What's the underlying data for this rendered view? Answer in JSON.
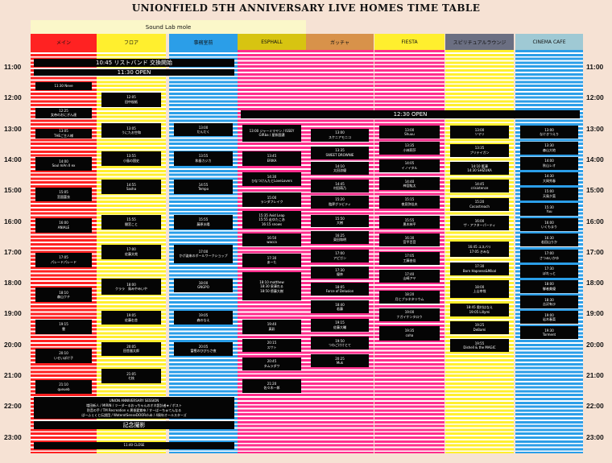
{
  "title": "UNIONFIELD 5TH ANNIVERSARY LIVE HOMES TIME TABLE",
  "group_label": "Sound Lab mole",
  "times": [
    "11:00",
    "12:00",
    "13:00",
    "14:00",
    "15:00",
    "16:00",
    "17:00",
    "18:00",
    "19:00",
    "20:00",
    "21:00",
    "22:00",
    "23:00"
  ],
  "colors": {
    "red": "#ff2222",
    "yellow": "#ffef2e",
    "blue": "#2b9ee8",
    "pink": "#ff2d8c",
    "dark": "#050505"
  },
  "stages": [
    {
      "id": "main",
      "name": "メイン",
      "header_bg": "#ff2222",
      "stripe": "#ff2222",
      "events": [
        {
          "start": "11:30",
          "end": "11:46",
          "text": "11:30 Neve"
        },
        {
          "start": "12:20",
          "end": "12:40",
          "text": "12:25\n女帝のおにぎん達"
        },
        {
          "start": "13:00",
          "end": "13:20",
          "text": "13:05\nTHEご主人様"
        },
        {
          "start": "13:55",
          "end": "14:22",
          "text": "14:00\nSoul mAn II ex"
        },
        {
          "start": "14:55",
          "end": "15:22",
          "text": "15:05\n宮園富衣"
        },
        {
          "start": "15:55",
          "end": "16:22",
          "text": "16:00\nANIALE"
        },
        {
          "start": "17:02",
          "end": "17:30",
          "text": "17:05\nパレードパレード"
        },
        {
          "start": "18:10",
          "end": "18:37",
          "text": "18:10\n森山クチ"
        },
        {
          "start": "19:12",
          "end": "19:40",
          "text": "19:15\n雲"
        },
        {
          "start": "20:08",
          "end": "20:36",
          "text": "20:10\nいせいぽけ子"
        },
        {
          "start": "21:10",
          "end": "21:36",
          "text": "21:10\nqueueb"
        }
      ]
    },
    {
      "id": "floor",
      "name": "フロア",
      "header_bg": "#ffef2e",
      "stripe": "#ffef2e",
      "events": [
        {
          "start": "11:50",
          "end": "12:18",
          "text": "12:05\n田中桜紙"
        },
        {
          "start": "12:50",
          "end": "13:18",
          "text": "13:05\nうにたお空和"
        },
        {
          "start": "13:45",
          "end": "14:12",
          "text": "13:55\n小島の国史"
        },
        {
          "start": "14:40",
          "end": "15:08",
          "text": "14:55\nSasha"
        },
        {
          "start": "15:48",
          "end": "16:16",
          "text": "15:55\n間宮こと"
        },
        {
          "start": "16:46",
          "end": "17:14",
          "text": "17:00\n佐藤文哉"
        },
        {
          "start": "17:52",
          "end": "18:24",
          "text": "18:00\nクララ　鳥みやみいや"
        },
        {
          "start": "18:55",
          "end": "19:22",
          "text": "19:05\n佐藤右舎"
        },
        {
          "start": "19:55",
          "end": "20:22",
          "text": "20:05\n田舎嵐太郎"
        },
        {
          "start": "20:48",
          "end": "21:16",
          "text": "21:05\n七枝"
        }
      ]
    },
    {
      "id": "room",
      "name": "事務室前",
      "header_bg": "#2b9ee8",
      "stripe": "#2b9ee8",
      "events": [
        {
          "start": "12:50",
          "end": "13:15",
          "text": "13:00\nだんだく"
        },
        {
          "start": "13:45",
          "end": "14:12",
          "text": "13:55\n和島カジカ"
        },
        {
          "start": "14:40",
          "end": "15:08",
          "text": "14:55\nTempo"
        },
        {
          "start": "15:48",
          "end": "16:16",
          "text": "15:55\n藤原水陽"
        },
        {
          "start": "16:46",
          "end": "17:22",
          "text": "17:00\nかげ姿来のボールワークショップ"
        },
        {
          "start": "17:52",
          "end": "18:18",
          "text": "18:00\nGNGPO"
        },
        {
          "start": "18:55",
          "end": "19:22",
          "text": "19:05\n森のなえ"
        },
        {
          "start": "19:55",
          "end": "20:22",
          "text": "20:05\n富樫のひびらさ夜"
        }
      ]
    },
    {
      "id": "esphall",
      "name": "ESPHALL",
      "header_bg": "#d7c411",
      "stripe": "#ff2d8c",
      "events": [
        {
          "start": "12:53",
          "end": "13:25",
          "text": "13:00 ジャーミマヤン / ISSEY\nGIRba / 星和国濃"
        },
        {
          "start": "13:45",
          "end": "14:12",
          "text": "13:45\nERIKA"
        },
        {
          "start": "14:25",
          "end": "14:52",
          "text": "14:30\nひなつけんたとLoveLovers"
        },
        {
          "start": "15:05",
          "end": "15:32",
          "text": "15:00\nランダフレイク"
        },
        {
          "start": "15:40",
          "end": "16:15",
          "text": "15:35 Avid Leap\n15:55 走ゆたこあ\n16:15 snows"
        },
        {
          "start": "16:25",
          "end": "16:50",
          "text": "16:50\nwacca"
        },
        {
          "start": "17:03",
          "end": "17:30",
          "text": "17:30\nあーた"
        },
        {
          "start": "17:40",
          "end": "18:35",
          "text": "18:10 matthew\n18:30 泉澤れる\n18:50 傍藤大樹"
        },
        {
          "start": "19:12",
          "end": "19:40",
          "text": "19:40\n真彩"
        },
        {
          "start": "19:50",
          "end": "20:14",
          "text": "20:15\nスサト"
        },
        {
          "start": "20:25",
          "end": "20:50",
          "text": "20:45\nタムラダワ"
        },
        {
          "start": "21:08",
          "end": "21:34",
          "text": "21:20\n佐々木一郎"
        }
      ]
    },
    {
      "id": "gacha",
      "name": "ガッチャ",
      "header_bg": "#d8924a",
      "stripe": "#ff2d8c",
      "events": [
        {
          "start": "13:00",
          "end": "13:25",
          "text": "13:00\nスケニアモニコ"
        },
        {
          "start": "13:35",
          "end": "14:00",
          "text": "13:35\nSWEET DROWNIE"
        },
        {
          "start": "14:05",
          "end": "14:30",
          "text": "14:10\n太田涼優"
        },
        {
          "start": "14:40",
          "end": "15:05",
          "text": "14:45\n村田萌乃"
        },
        {
          "start": "15:10",
          "end": "15:36",
          "text": "15:20\n臨界グラビティ"
        },
        {
          "start": "15:48",
          "end": "16:12",
          "text": "15:50\n大樹"
        },
        {
          "start": "16:20",
          "end": "16:45",
          "text": "16:25\n東田和明"
        },
        {
          "start": "16:55",
          "end": "17:20",
          "text": "17:00\nアピガン"
        },
        {
          "start": "17:28",
          "end": "17:52",
          "text": "17:30\n優奈"
        },
        {
          "start": "18:00",
          "end": "18:25",
          "text": "18:05\nForce of Delusion"
        },
        {
          "start": "18:35",
          "end": "19:00",
          "text": "18:40\n若藤"
        },
        {
          "start": "19:10",
          "end": "19:35",
          "text": "19:15\n佐藤大輔"
        },
        {
          "start": "19:45",
          "end": "20:10",
          "text": "19:50\nつわごけけとて"
        },
        {
          "start": "20:20",
          "end": "20:45",
          "text": "20:25\nMuk"
        }
      ]
    },
    {
      "id": "fiesta",
      "name": "FIESTA",
      "header_bg": "#ffef2e",
      "stripe": "#ff2d8c",
      "events": [
        {
          "start": "12:55",
          "end": "13:20",
          "text": "13:00\nShuuu"
        },
        {
          "start": "13:25",
          "end": "13:50",
          "text": "13:35\n小林莉莎"
        },
        {
          "start": "14:00",
          "end": "14:25",
          "text": "14:05\nイノイタル"
        },
        {
          "start": "14:35",
          "end": "15:00",
          "text": "14:40\n柿宮紘太"
        },
        {
          "start": "15:10",
          "end": "15:36",
          "text": "15:15\n夜見弥佳夫"
        },
        {
          "start": "15:50",
          "end": "16:15",
          "text": "15:55\n黒木林平"
        },
        {
          "start": "16:25",
          "end": "16:50",
          "text": "16:30\n宮平百音"
        },
        {
          "start": "17:00",
          "end": "17:25",
          "text": "17:05\n工藤由佳"
        },
        {
          "start": "17:35",
          "end": "18:00",
          "text": "17:40\n山崎アヤ"
        },
        {
          "start": "18:15",
          "end": "18:40",
          "text": "18:20\n月とプラネタリウム"
        },
        {
          "start": "18:50",
          "end": "19:15",
          "text": "19:00\nナガイケンタロウ"
        },
        {
          "start": "19:25",
          "end": "19:52",
          "text": "19:35\ncoha"
        }
      ]
    },
    {
      "id": "spiritual",
      "name": "スピリチュアルラウンジ",
      "header_bg": "#6b6f82",
      "stripe": "#ffef2e",
      "events": [
        {
          "start": "12:55",
          "end": "13:20",
          "text": "13:00\nソマリ"
        },
        {
          "start": "13:30",
          "end": "13:55",
          "text": "13:35\nプリテイガン"
        },
        {
          "start": "14:05",
          "end": "14:30",
          "text": "14:10 藍澤\n14:30 SHIZUKA"
        },
        {
          "start": "14:40",
          "end": "15:05",
          "text": "14:45\ncrisixtence"
        },
        {
          "start": "15:15",
          "end": "15:40",
          "text": "15:20\nCocostreach"
        },
        {
          "start": "15:50",
          "end": "16:18",
          "text": "16:00\nザ・アフターパーティ"
        },
        {
          "start": "16:40",
          "end": "17:10",
          "text": "16:45 ユスバリ\n17:05 きみな"
        },
        {
          "start": "17:20",
          "end": "17:45",
          "text": "17:30\nBorn Hapness&Mikal"
        },
        {
          "start": "17:55",
          "end": "18:30",
          "text": "18:00\n上山幸哉"
        },
        {
          "start": "18:40",
          "end": "19:05",
          "text": "18:45 奥村はなえ\n19:05 Lillymi"
        },
        {
          "start": "19:15",
          "end": "19:40",
          "text": "19:25\nDeBami"
        },
        {
          "start": "19:50",
          "end": "20:15",
          "text": "19:55\nDishell & the MAGIC"
        }
      ]
    },
    {
      "id": "cinema",
      "name": "CINEMA CAFE",
      "header_bg": "#9fc9d4",
      "stripe": "#2b9ee8",
      "events": [
        {
          "start": "12:55",
          "end": "13:20",
          "text": "13:00\nなけきつえり"
        },
        {
          "start": "13:25",
          "end": "13:50",
          "text": "13:30\n森山大地"
        },
        {
          "start": "13:55",
          "end": "14:20",
          "text": "14:00\n秋山レオ"
        },
        {
          "start": "14:25",
          "end": "14:50",
          "text": "14:30\n大岡秀春"
        },
        {
          "start": "14:55",
          "end": "15:20",
          "text": "15:00\n天鳥夕菜"
        },
        {
          "start": "15:25",
          "end": "15:50",
          "text": "15:30\nYuu"
        },
        {
          "start": "15:55",
          "end": "16:20",
          "text": "16:00\nいくもまり"
        },
        {
          "start": "16:25",
          "end": "16:50",
          "text": "16:30\n若田山りか"
        },
        {
          "start": "16:55",
          "end": "17:20",
          "text": "17:00\nさつみいかゆ"
        },
        {
          "start": "17:25",
          "end": "17:50",
          "text": "17:30\nぽれっと"
        },
        {
          "start": "17:55",
          "end": "18:20",
          "text": "18:00\n御者美優"
        },
        {
          "start": "18:25",
          "end": "18:50",
          "text": "18:30\n吉沢有沙"
        },
        {
          "start": "18:55",
          "end": "19:20",
          "text": "19:00\n岩木春菜"
        },
        {
          "start": "19:25",
          "end": "19:50",
          "text": "19:30\nTorment"
        }
      ]
    }
  ],
  "banners": [
    {
      "id": "wristband",
      "text": "10:45 リストバンド 交換開始",
      "col": "main",
      "cols": 3,
      "start": "10:45",
      "end": "11:00"
    },
    {
      "id": "open-1130",
      "text": "11:30 OPEN",
      "col": "main",
      "cols": 3,
      "start": "11:05",
      "end": "11:18"
    },
    {
      "id": "open-1230",
      "text": "12:30 OPEN",
      "col": "esphall",
      "cols": 5,
      "start": "12:25",
      "end": "12:40"
    },
    {
      "id": "session",
      "text": "UNION ANNIVERSARY SESSION\n増田新人 / MIRIN / ツーダーるおっちゃんのオネ設計者★ / ボスト\n防音の手 / TM Recreation x 黒香愛紫帝 / すーぱーちゅてんなる\nぱーふぇくと伝説団 / WaterotSenseDOORclub / 4周年オールスターズ",
      "col": "main",
      "cols": 3,
      "start": "21:42",
      "end": "22:25",
      "small": true
    },
    {
      "id": "photo",
      "text": "記念撮影",
      "col": "main",
      "cols": 3,
      "start": "22:30",
      "end": "22:45"
    },
    {
      "id": "close",
      "text": "11:40 CLOSE",
      "col": "main",
      "cols": 3,
      "start": "23:10",
      "end": "23:24",
      "small": true
    }
  ]
}
